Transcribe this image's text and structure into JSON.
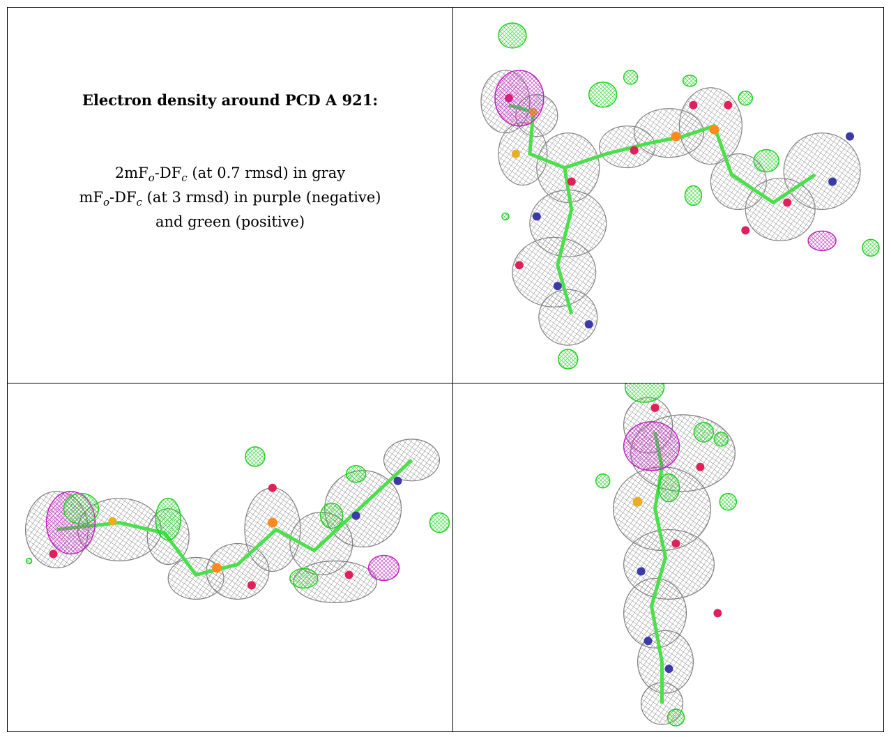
{
  "legend": {
    "title": "Electron density around PCD A 921:",
    "line1": {
      "prefix": "2mF",
      "sub1": "o",
      "mid": "-DF",
      "sub2": "c",
      "suffix": " (at 0.7 rmsd) in gray"
    },
    "line2": {
      "prefix": "mF",
      "sub1": "o",
      "mid": "-DF",
      "sub2": "c",
      "suffix": " (at 3 rmsd) in purple (negative)"
    },
    "line3": "and green (positive)"
  },
  "colors": {
    "mesh_gray": "#9a9a9a",
    "positive_green": "#22dd22",
    "negative_purple": "#cc22cc",
    "carbon": "#4be04b",
    "oxygen": "#e0205a",
    "nitrogen": "#3a3aa8",
    "phosphorus": "#ff8c1a",
    "sulfur": "#e8b020"
  },
  "views": [
    {
      "name": "view-top-right"
    },
    {
      "name": "view-bottom-left"
    },
    {
      "name": "view-bottom-right"
    }
  ]
}
